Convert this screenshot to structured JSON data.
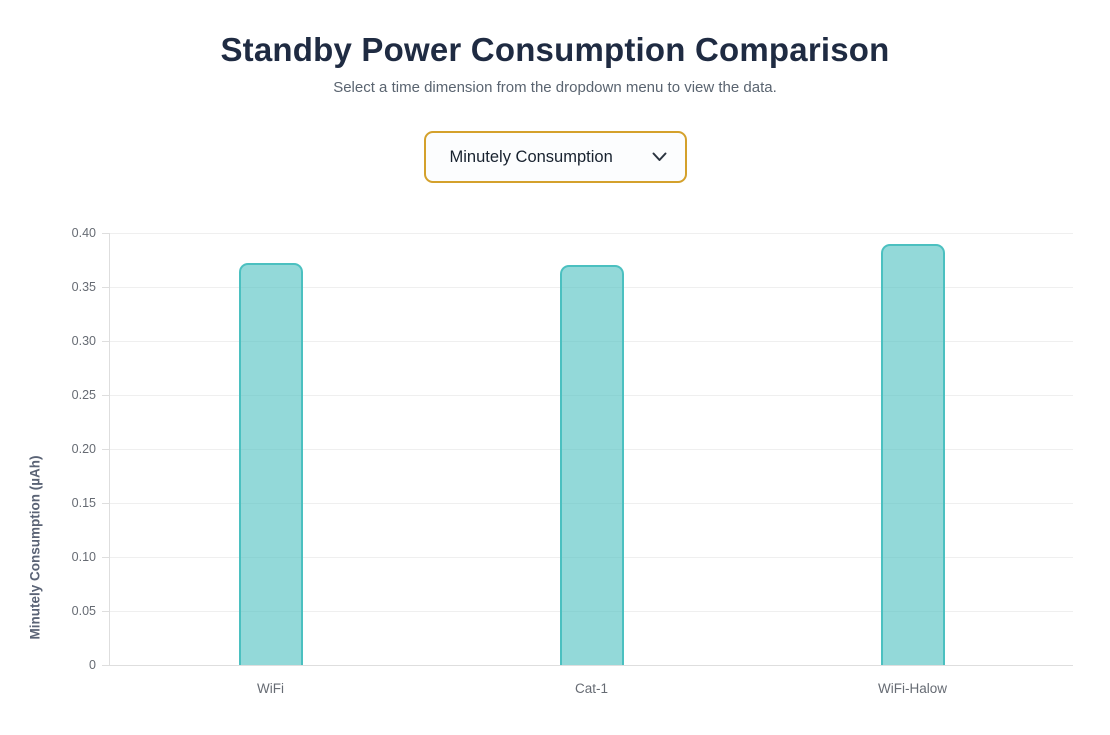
{
  "header": {
    "title": "Standby Power Consumption Comparison",
    "subtitle": "Select a time dimension from the dropdown menu to view the data."
  },
  "controls": {
    "time_dimension_select": {
      "value": "Minutely Consumption",
      "icon": "chevron-down-icon"
    }
  },
  "chart_data": {
    "type": "bar",
    "title": "",
    "categories": [
      "WiFi",
      "Cat-1",
      "WiFi-Halow"
    ],
    "values": [
      0.372,
      0.37,
      0.39
    ],
    "xlabel": "",
    "ylabel": "Minutely Consumption (µAh)",
    "ylim": [
      0,
      0.4
    ],
    "ytick_step": 0.05,
    "ytick_labels": [
      "0.40",
      "0.35",
      "0.30",
      "0.25",
      "0.20",
      "0.15",
      "0.10",
      "0.05",
      "0"
    ],
    "grid": true,
    "legend": false
  },
  "colors": {
    "title": "#1f2b42",
    "subtitle": "#5a6470",
    "select_border": "#d4a12c",
    "axis_title": "#5a6375",
    "tick_label": "#666b73",
    "gridline": "#efefef",
    "axis_line": "#dedede",
    "bar_fill": "rgba(75,192,192,0.6)",
    "bar_border": "#4bc0c0"
  }
}
